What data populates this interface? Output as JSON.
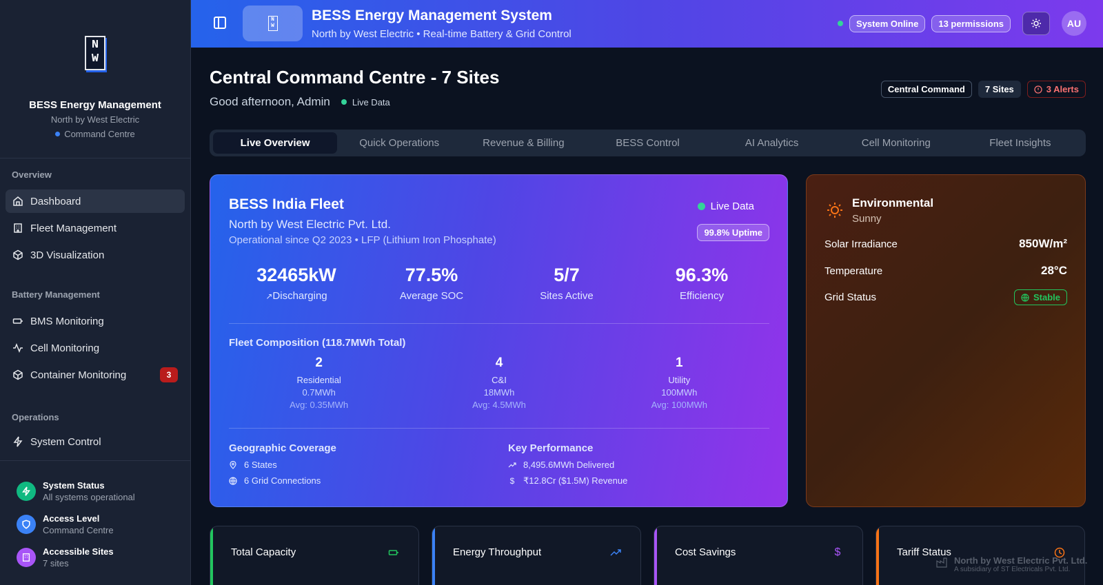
{
  "sidebar": {
    "logo_text": "NW",
    "title": "BESS Energy Management",
    "subtitle": "North by West Electric",
    "mode": "Command Centre",
    "sections": {
      "overview": "Overview",
      "battery": "Battery Management",
      "operations": "Operations"
    },
    "items": {
      "dashboard": "Dashboard",
      "fleet": "Fleet Management",
      "viz3d": "3D Visualization",
      "bms": "BMS Monitoring",
      "cell": "Cell Monitoring",
      "container": "Container Monitoring",
      "container_badge": "3",
      "system": "System Control"
    },
    "footer": {
      "status_title": "System Status",
      "status_sub": "All systems operational",
      "access_title": "Access Level",
      "access_sub": "Command Centre",
      "sites_title": "Accessible Sites",
      "sites_sub": "7 sites"
    }
  },
  "header": {
    "title": "BESS Energy Management System",
    "subtitle": "North by West Electric • Real-time Battery & Grid Control",
    "status": "System Online",
    "permissions": "13 permissions",
    "avatar": "AU"
  },
  "main": {
    "title": "Central Command Centre - 7 Sites",
    "greeting": "Good afternoon, Admin",
    "live": "Live Data",
    "tags": {
      "command": "Central Command",
      "sites": "7 Sites",
      "alerts": "3 Alerts"
    },
    "tabs": [
      "Live Overview",
      "Quick Operations",
      "Revenue & Billing",
      "BESS Control",
      "AI Analytics",
      "Cell Monitoring",
      "Fleet Insights"
    ]
  },
  "fleet": {
    "title": "BESS India Fleet",
    "company": "North by West Electric Pvt. Ltd.",
    "since": "Operational since Q2 2023 • LFP (Lithium Iron Phosphate)",
    "live": "Live Data",
    "uptime": "99.8% Uptime",
    "kpis": [
      {
        "value": "32465kW",
        "label": "Discharging"
      },
      {
        "value": "77.5%",
        "label": "Average SOC"
      },
      {
        "value": "5/7",
        "label": "Sites Active"
      },
      {
        "value": "96.3%",
        "label": "Efficiency"
      }
    ],
    "composition_title": "Fleet Composition (118.7MWh Total)",
    "composition": [
      {
        "count": "2",
        "name": "Residential",
        "capacity": "0.7MWh",
        "avg": "Avg: 0.35MWh"
      },
      {
        "count": "4",
        "name": "C&I",
        "capacity": "18MWh",
        "avg": "Avg: 4.5MWh"
      },
      {
        "count": "1",
        "name": "Utility",
        "capacity": "100MWh",
        "avg": "Avg: 100MWh"
      }
    ],
    "geo_title": "Geographic Coverage",
    "geo_states": "6 States",
    "geo_grid": "6 Grid Connections",
    "perf_title": "Key Performance",
    "perf_delivered": "8,495.6MWh Delivered",
    "perf_revenue": "₹12.8Cr ($1.5M) Revenue"
  },
  "environment": {
    "title": "Environmental",
    "condition": "Sunny",
    "irradiance_label": "Solar Irradiance",
    "irradiance": "850W/m²",
    "temp_label": "Temperature",
    "temp": "28°C",
    "grid_label": "Grid Status",
    "grid": "Stable"
  },
  "cards": {
    "capacity": "Total Capacity",
    "throughput": "Energy Throughput",
    "savings": "Cost Savings",
    "tariff": "Tariff Status"
  },
  "watermark": {
    "title": "North by West Electric Pvt. Ltd.",
    "sub": "A subsidiary of ST Electricals Pvt. Ltd."
  },
  "colors": {
    "accent_green": "#22c55e",
    "accent_blue": "#3b82f6",
    "accent_purple": "#a855f7",
    "accent_orange": "#f97316",
    "alert_red": "#ef4444"
  }
}
